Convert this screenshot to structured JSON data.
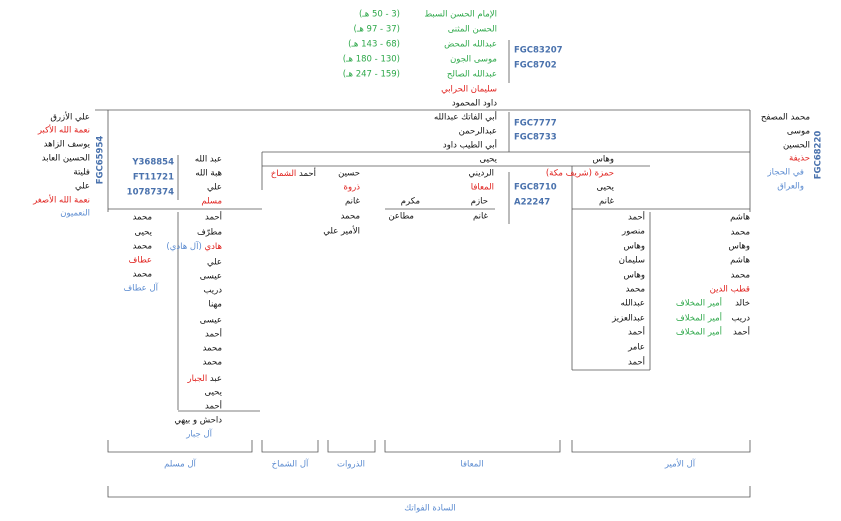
{
  "top": {
    "names": [
      "الإمام الحسن السبط",
      "الحسن المثنى",
      "عبدالله المحض",
      "موسى الجون",
      "عبدالله الصالح",
      "سليمان الحرابي",
      "داود المحمود"
    ],
    "years": [
      "(3 - 50 هـ)",
      "(37 - 97 هـ)",
      "(68 - 143 هـ)",
      "(130 - 180 هـ)",
      "(159 - 247 هـ)"
    ],
    "codes": [
      "FGC83207",
      "FGC8702"
    ]
  },
  "middle": {
    "names": [
      "أبي الفاتك عبدالله",
      "عبدالرحمن",
      "أبي الطيب داود",
      "يحيى"
    ],
    "codes": [
      "FGC7777",
      "FGC8733"
    ]
  },
  "left_branch": {
    "names": [
      "علي الأزرق",
      "نعمة الله الأكبر",
      "يوسف الزاهد",
      "الحسين العابد",
      "فليتة",
      "علي",
      "نعمة الله الأصغر"
    ],
    "group": "النعميون",
    "code": "FGC65954"
  },
  "right_branch": {
    "names": [
      "محمد المصفح",
      "موسى",
      "الحسين",
      "حذيفة"
    ],
    "region": [
      "في الحجاز",
      "والعراق"
    ],
    "code": "FGC68220"
  },
  "al_muslim": {
    "head": [
      "عبد الله",
      "هبة الله",
      "علي",
      "مسلم"
    ],
    "codes": [
      "Y368854",
      "FT11721",
      "10787374"
    ],
    "ataf": [
      "محمد",
      "يحيى",
      "محمد",
      "عطاف",
      "محمد"
    ],
    "ataf_group": "آل عطاف",
    "jabbar": [
      "أحمد",
      "مطرّف",
      "هادي",
      "(آل هادي)",
      "علي",
      "عيسى",
      "دريب",
      "مهنا",
      "عيسى",
      "أحمد",
      "محمد",
      "محمد",
      "عبد",
      "الجبار",
      "يحيى",
      "أحمد",
      "داحش و بيهي"
    ],
    "jabbar_group": "آل جبار"
  },
  "al_shammakh": [
    "أحمد",
    "الشماخ"
  ],
  "dhurwat": [
    "حسين",
    "ذروة",
    "غانم",
    "محمد",
    "الأمير علي"
  ],
  "muafa": {
    "names": [
      "الرديني",
      "المعافا"
    ],
    "right": [
      "حازم",
      "غانم"
    ],
    "left": [
      "مكرم",
      "مطاعن"
    ],
    "codes": [
      "FGC8710",
      "A22247"
    ]
  },
  "al_amir": {
    "head": [
      "وهاس",
      "حمزة (شريف مكة)",
      "يحيى",
      "غانم"
    ],
    "line_a": [
      "أحمد",
      "منصور",
      "وهاس",
      "سليمان",
      "وهاس",
      "محمد",
      "عبدالله",
      "عبدالعزيز",
      "أحمد",
      "عامر",
      "أحمد"
    ],
    "line_b": [
      "هاشم",
      "محمد",
      "وهاس",
      "هاشم",
      "محمد",
      "قطب الدين",
      "خالد",
      "دريب",
      "أحمد"
    ],
    "titles": [
      "أمير المخلاف",
      "أمير المخلاف",
      "أمير المخلاف"
    ]
  },
  "brackets": [
    "آل مسلم",
    "آل الشماخ",
    "الذروات",
    "المعافا",
    "آل الأمير"
  ],
  "root": "السادة الفواتك"
}
